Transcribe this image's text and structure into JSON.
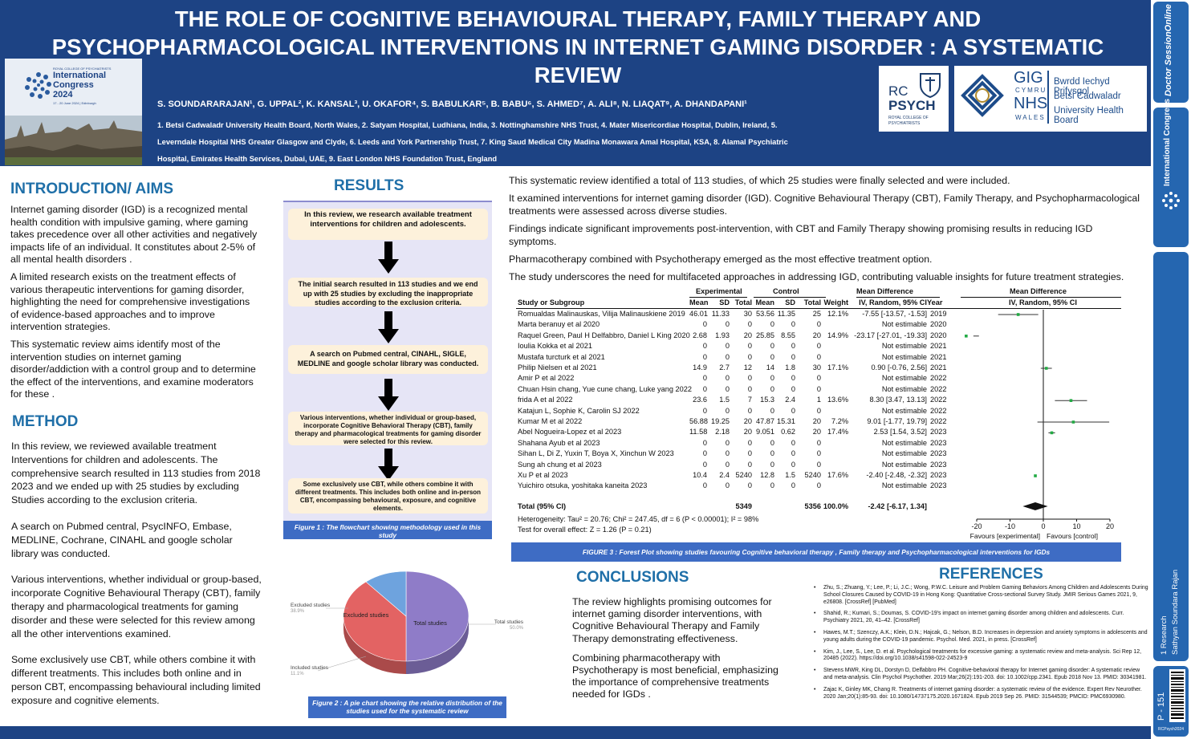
{
  "header": {
    "title_lines": [
      "THE ROLE OF COGNITIVE BEHAVIOURAL THERAPY, FAMILY THERAPY AND",
      "PSYCHOPHARMACOLOGICAL INTERVENTIONS IN INTERNET GAMING DISORDER : A SYSTEMATIC",
      "REVIEW"
    ],
    "authors": "S. SOUNDARARAJAN¹, G. UPPAL², K. KANSAL³, U. OKAFOR⁴, S. BABULKAR⁵, B. BABU⁶, S. AHMED⁷, A. ALI⁸, N. LIAQAT⁹, A. DHANDAPANI¹",
    "affiliation_lines": [
      "1. Betsi Cadwaladr University Health Board, North Wales, 2. Satyam Hospital, Ludhiana, India, 3. Nottinghamshire NHS Trust, 4. Mater Misericordiae Hospital, Dublin, Ireland, 5.",
      "Leverndale Hospital NHS Greater Glasgow and Clyde, 6. Leeds and York Partnership Trust, 7. King Saud Medical City Madina Monawara Amal Hospital, KSA, 8. Alamal Psychiatric",
      "Hospital, Emirates Health Services, Dubai, UAE, 9. East London NHS Foundation Trust, England"
    ],
    "congress_logo": {
      "small": "ROYAL COLLEGE OF PSYCHIATRISTS",
      "line1": "International",
      "line2": "Congress",
      "year": "2024",
      "dates": "17 - 20 June 2024 | Edinburgh"
    },
    "rcpsych": {
      "rc": "RC",
      "psych": "PSYCH",
      "sub1": "ROYAL COLLEGE OF",
      "sub2": "PSYCHIATRISTS"
    },
    "nhs": {
      "gig": "GIG",
      "cymru": "CYMRU",
      "nhs": "NHS",
      "wales": "WALES",
      "line1": "Bwrdd Iechyd Prifysgol",
      "line2": "Betsi Cadwaladr",
      "line3": "University Health Board"
    }
  },
  "sidebar": {
    "brand": "Doctor SessionOnline",
    "congress": "International Congress",
    "category": "1 Research",
    "presenter": "Sathyan Soundara Rajan",
    "poster_id": "P - 151",
    "code": "RCPsych2024"
  },
  "introduction": {
    "heading": "INTRODUCTION/ AIMS",
    "paragraphs": [
      "Internet gaming disorder (IGD) is a recognized mental health condition with impulsive gaming, where gaming takes precedence over all other activities and negatively impacts life of an individual. It constitutes about 2-5% of all mental health disorders .",
      "A limited research exists on the treatment effects of various therapeutic interventions for gaming disorder, highlighting the need for comprehensive investigations of evidence-based approaches and to improve intervention strategies.",
      "This systematic review aims identify most of the intervention studies on internet gaming disorder/addiction with a control group and to determine the effect of the interventions, and examine moderators for these ."
    ]
  },
  "method": {
    "heading": "METHOD",
    "paragraphs": [
      "In this review, we reviewed available treatment Interventions for children and adolescents. The comprehensive search resulted in 113 studies from 2018 2023 and we ended up with 25 studies by excluding Studies according to the exclusion criteria.",
      "A search on Pubmed central, PsycINFO, Embase, MEDLINE, Cochrane, CINAHL and google scholar library was conducted.",
      "Various interventions, whether individual or group-based, incorporate Cognitive Behavioural Therapy (CBT), family therapy and pharmacological treatments for gaming disorder and these were selected for this review among all the other interventions examined.",
      "Some exclusively use CBT, while others combine it with different treatments. This includes both online and in person CBT, encompassing behavioural including limited exposure and cognitive elements."
    ]
  },
  "results": {
    "heading": "RESULTS",
    "flow_boxes": [
      "In this review, we research available treatment interventions for children and adolescents.",
      "The initial search resulted in 113 studies and we end up with 25 studies by excluding the inappropriate studies according to the exclusion criteria.",
      "A search on Pubmed central, CINAHL, SIGLE, MEDLINE and google scholar library was conducted.",
      "Various interventions, whether individual or group-based, incorporate Cognitive Behavioral Therapy (CBT), family therapy and pharmacological treatments for gaming disorder were selected for this review.",
      "Some exclusively use CBT, while others combine it with different treatments. This includes both online and in-person CBT, encompassing behavioural, exposure, and cognitive elements."
    ],
    "figure1_caption": "Figure 1  : The flowchart showing methodology used in this study",
    "figure2_caption": "Figure 2  : A pie chart showing the relative distribution of the studies used for the systematic review",
    "paragraphs": [
      "This systematic review identified a total of 113 studies, of which 25 studies were finally selected and were included.",
      "It examined interventions for internet gaming disorder (IGD). Cognitive Behavioural Therapy (CBT), Family Therapy, and Psychopharmacological treatments were assessed across diverse studies.",
      "Findings indicate significant improvements post-intervention, with CBT and Family Therapy showing promising results in reducing IGD symptoms.",
      "Pharmacotherapy combined with Psychotherapy emerged as the most effective treatment option.",
      "The study underscores the need for multifaceted approaches in addressing IGD, contributing valuable insights for future treatment strategies."
    ],
    "figure3_caption": "FIGURE 3 : Forest Plot showing studies favouring Cognitive behavioral therapy , Family therapy and Psychopharmacological interventions for IGDs"
  },
  "forest": {
    "group_headers": {
      "experimental": "Experimental",
      "control": "Control",
      "md_left": "Mean Difference",
      "md_right": "Mean Difference"
    },
    "col_headers": {
      "study": "Study or Subgroup",
      "mean_e": "Mean",
      "sd_e": "SD",
      "total_e": "Total",
      "mean_c": "Mean",
      "sd_c": "SD",
      "total_c": "Total",
      "weight": "Weight",
      "ci": "IV, Random, 95% CI",
      "year": "Year",
      "ci_right": "IV, Random, 95% CI"
    },
    "rows": [
      {
        "study": "Romualdas Malinauskas, Vilija Malinauskiene 2019",
        "me": "46.01",
        "sde": "11.33",
        "te": "30",
        "mc": "53.56",
        "sdc": "11.35",
        "tc": "25",
        "w": "12.1%",
        "ci": "-7.55 [-13.57, -1.53]",
        "year": "2019"
      },
      {
        "study": "Marta beranuy et al 2020",
        "me": "0",
        "sde": "0",
        "te": "0",
        "mc": "0",
        "sdc": "0",
        "tc": "0",
        "w": "",
        "ci": "Not estimable",
        "year": "2020"
      },
      {
        "study": "Raquel Green, Paul H Delfabbro, Daniel L King 2020",
        "me": "2.68",
        "sde": "1.93",
        "te": "20",
        "mc": "25.85",
        "sdc": "8.55",
        "tc": "20",
        "w": "14.9%",
        "ci": "-23.17 [-27.01, -19.33]",
        "year": "2020"
      },
      {
        "study": "Ioulia Kokka et al 2021",
        "me": "0",
        "sde": "0",
        "te": "0",
        "mc": "0",
        "sdc": "0",
        "tc": "0",
        "w": "",
        "ci": "Not estimable",
        "year": "2021"
      },
      {
        "study": "Mustafa turcturk et al 2021",
        "me": "0",
        "sde": "0",
        "te": "0",
        "mc": "0",
        "sdc": "0",
        "tc": "0",
        "w": "",
        "ci": "Not estimable",
        "year": "2021"
      },
      {
        "study": "Philip Nielsen et al 2021",
        "me": "14.9",
        "sde": "2.7",
        "te": "12",
        "mc": "14",
        "sdc": "1.8",
        "tc": "30",
        "w": "17.1%",
        "ci": "0.90 [-0.76, 2.56]",
        "year": "2021"
      },
      {
        "study": "Amir P et al 2022",
        "me": "0",
        "sde": "0",
        "te": "0",
        "mc": "0",
        "sdc": "0",
        "tc": "0",
        "w": "",
        "ci": "Not estimable",
        "year": "2022"
      },
      {
        "study": "Chuan Hsin chang, Yue cune chang, Luke yang 2022",
        "me": "0",
        "sde": "0",
        "te": "0",
        "mc": "0",
        "sdc": "0",
        "tc": "0",
        "w": "",
        "ci": "Not estimable",
        "year": "2022"
      },
      {
        "study": "frida A et al 2022",
        "me": "23.6",
        "sde": "1.5",
        "te": "7",
        "mc": "15.3",
        "sdc": "2.4",
        "tc": "1",
        "w": "13.6%",
        "ci": "8.30 [3.47, 13.13]",
        "year": "2022"
      },
      {
        "study": "Katajun L, Sophie K, Carolin SJ 2022",
        "me": "0",
        "sde": "0",
        "te": "0",
        "mc": "0",
        "sdc": "0",
        "tc": "0",
        "w": "",
        "ci": "Not estimable",
        "year": "2022"
      },
      {
        "study": "Kumar M et al 2022",
        "me": "56.88",
        "sde": "19.25",
        "te": "20",
        "mc": "47.87",
        "sdc": "15.31",
        "tc": "20",
        "w": "7.2%",
        "ci": "9.01 [-1.77, 19.79]",
        "year": "2022"
      },
      {
        "study": "Abel Nogueira-Lopez et al 2023",
        "me": "11.58",
        "sde": "2.18",
        "te": "20",
        "mc": "9.051",
        "sdc": "0.62",
        "tc": "20",
        "w": "17.4%",
        "ci": "2.53 [1.54, 3.52]",
        "year": "2023"
      },
      {
        "study": "Shahana Ayub et al 2023",
        "me": "0",
        "sde": "0",
        "te": "0",
        "mc": "0",
        "sdc": "0",
        "tc": "0",
        "w": "",
        "ci": "Not estimable",
        "year": "2023"
      },
      {
        "study": "Sihan L, Di Z, Yuxin T, Boya X, Xinchun W 2023",
        "me": "0",
        "sde": "0",
        "te": "0",
        "mc": "0",
        "sdc": "0",
        "tc": "0",
        "w": "",
        "ci": "Not estimable",
        "year": "2023"
      },
      {
        "study": "Sung ah chung et al 2023",
        "me": "0",
        "sde": "0",
        "te": "0",
        "mc": "0",
        "sdc": "0",
        "tc": "0",
        "w": "",
        "ci": "Not estimable",
        "year": "2023"
      },
      {
        "study": "Xu P et al 2023",
        "me": "10.4",
        "sde": "2.4",
        "te": "5240",
        "mc": "12.8",
        "sdc": "1.5",
        "tc": "5240",
        "w": "17.6%",
        "ci": "-2.40 [-2.48, -2.32]",
        "year": "2023"
      },
      {
        "study": "Yuichiro otsuka, yoshitaka kaneita 2023",
        "me": "0",
        "sde": "0",
        "te": "0",
        "mc": "0",
        "sdc": "0",
        "tc": "0",
        "w": "",
        "ci": "Not estimable",
        "year": "2023"
      }
    ],
    "total": {
      "label": "Total (95% CI)",
      "te": "5349",
      "tc": "5356",
      "w": "100.0%",
      "ci": "-2.42 [-6.17, 1.34]"
    },
    "heterogeneity": "Heterogeneity: Tau² = 20.76; Chi² = 247.45, df = 6 (P < 0.00001); I² = 98%",
    "overall_effect": "Test for overall effect: Z = 1.26 (P = 0.21)",
    "axis_ticks": [
      "-20",
      "-10",
      "0",
      "10",
      "20"
    ],
    "favours_left": "Favours [experimental]",
    "favours_right": "Favours [control]"
  },
  "chart_data": [
    {
      "type": "pie",
      "title": "",
      "categories": [
        "Total studies",
        "Excluded studies",
        "Included studies"
      ],
      "values": [
        50.0,
        38.9,
        11.1
      ],
      "labels": [
        "Total studies",
        "Excluded studies",
        "Included studies"
      ],
      "percent_labels": [
        "50.0%",
        "38.9%",
        "11.1%"
      ],
      "colors": [
        "#8f7cc8",
        "#e36363",
        "#6ea3de"
      ]
    },
    {
      "type": "scatter",
      "title": "",
      "xlabel": "",
      "xlim": [
        -20,
        20
      ],
      "x_ticks": [
        -20,
        -10,
        0,
        10,
        20
      ],
      "points": [
        {
          "name": "Romualdas Malinauskas, Vilija Malinauskiene 2019",
          "md": -7.55,
          "lo": -13.57,
          "hi": -1.53
        },
        {
          "name": "Raquel Green, Paul H Delfabbro, Daniel L King 2020",
          "md": -23.17,
          "lo": -27.01,
          "hi": -19.33
        },
        {
          "name": "Philip Nielsen et al 2021",
          "md": 0.9,
          "lo": -0.76,
          "hi": 2.56
        },
        {
          "name": "frida A et al 2022",
          "md": 8.3,
          "lo": 3.47,
          "hi": 13.13
        },
        {
          "name": "Kumar M et al 2022",
          "md": 9.01,
          "lo": -1.77,
          "hi": 19.79
        },
        {
          "name": "Abel Nogueira-Lopez et al 2023",
          "md": 2.53,
          "lo": 1.54,
          "hi": 3.52
        },
        {
          "name": "Xu P et al 2023",
          "md": -2.4,
          "lo": -2.48,
          "hi": -2.32
        }
      ],
      "pooled": {
        "md": -2.42,
        "lo": -6.17,
        "hi": 1.34
      },
      "marker_color": "#22aa44"
    }
  ],
  "conclusions": {
    "heading": "CONCLUSIONS",
    "paragraphs": [
      "The review highlights promising outcomes for internet gaming disorder interventions, with Cognitive Behavioural Therapy and Family Therapy demonstrating effectiveness.",
      "Combining pharmacotherapy with Psychotherapy is most beneficial, emphasizing the importance of comprehensive treatments needed for IGDs ."
    ]
  },
  "references": {
    "heading": "REFERENCES",
    "items": [
      "Zhu, S.; Zhuang, Y.; Lee, P.; Li, J.C.; Wong, P.W.C. Leisure and Problem Gaming Behaviors Among Children and Adolescents During School Closures Caused by COVID-19 in Hong Kong: Quantitative Cross-sectional Survey Study. JMIR Serious Games 2021, 9, e26808. [CrossRef] [PubMed]",
      "Shahid, R.; Kumari, S.; Doumas, S. COVID-19's impact on internet gaming disorder among children and adolescents. Curr. Psychiatry 2021, 20, 41–42. [CrossRef]",
      " Hawes, M.T.; Szenczy, A.K.; Klein, D.N.; Hajcak, G.; Nelson, B.D. Increases in depression and anxiety symptoms in adolescents and young adults during the COVID-19 pandemic. Psychol. Med. 2021, in press. [CrossRef]",
      "Kim, J., Lee, S., Lee, D. et al. Psychological treatments for excessive gaming: a systematic review and meta-analysis. Sci Rep 12, 20485 (2022). https://doi.org/10.1038/s41598-022-24523-9",
      "Stevens MWR, King DL, Dorstyn D, Delfabbro PH. Cognitive-behavioral therapy for Internet gaming disorder: A systematic review and meta-analysis. Clin Psychol Psychother. 2019 Mar;26(2):191-203. doi: 10.1002/cpp.2341. Epub 2018 Nov 13. PMID: 30341981.",
      "Zajac K, Ginley MK, Chang R. Treatments of internet gaming disorder: a systematic review of the evidence. Expert Rev Neurother. 2020 Jan;20(1):85-93. doi: 10.1080/14737175.2020.1671824. Epub 2019 Sep 26. PMID: 31544539; PMCID: PMC6930980."
    ]
  }
}
